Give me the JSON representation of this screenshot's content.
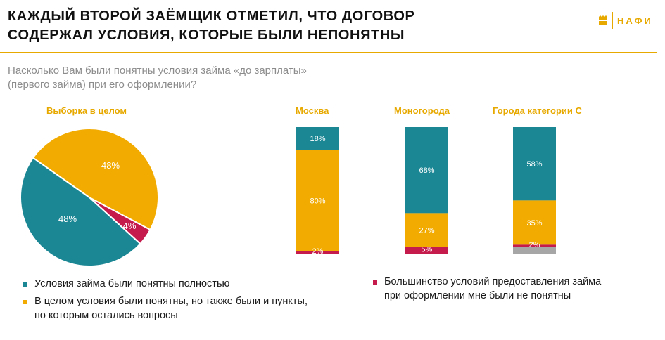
{
  "header": {
    "title_line1": "КАЖДЫЙ ВТОРОЙ ЗАЁМЩИК ОТМЕТИЛ, ЧТО ДОГОВОР",
    "title_line2": "СОДЕРЖАЛ УСЛОВИЯ, КОТОРЫЕ БЫЛИ НЕПОНЯТНЫ",
    "logo_text": "НАФИ"
  },
  "question": {
    "line1": "Насколько Вам были понятны условия займа «до зарплаты»",
    "line2": "(первого займа) при его оформлении?"
  },
  "colors": {
    "teal": "#1b8795",
    "yellow": "#f2ab00",
    "crimson": "#c41a4c",
    "gray": "#a6a6a6",
    "accent": "#e7a900"
  },
  "chart_data": [
    {
      "type": "pie",
      "title": "Выборка в целом",
      "slices": [
        {
          "key": "full",
          "value": 48,
          "label": "48%"
        },
        {
          "key": "partial",
          "value": 48,
          "label": "48%"
        },
        {
          "key": "none",
          "value": 4,
          "label": "4%"
        }
      ]
    },
    {
      "type": "bar",
      "stacked": true,
      "ylim": [
        0,
        100
      ],
      "categories": [
        "Москва",
        "Моногорода",
        "Города категории С"
      ],
      "series": [
        {
          "key": "full",
          "values": [
            18,
            68,
            58
          ],
          "labels": [
            "18%",
            "68%",
            "58%"
          ]
        },
        {
          "key": "partial",
          "values": [
            80,
            27,
            35
          ],
          "labels": [
            "80%",
            "27%",
            "35%"
          ]
        },
        {
          "key": "none",
          "values": [
            2,
            5,
            2
          ],
          "labels": [
            "2%",
            "5%",
            "2%"
          ]
        },
        {
          "key": "other",
          "values": [
            0,
            0,
            5
          ],
          "labels": [
            "",
            "",
            ""
          ]
        }
      ]
    }
  ],
  "legend": {
    "full": "Условия займа были понятны полностью",
    "partial_line1": "В целом условия были понятны, но также были и пункты,",
    "partial_line2": "по которым остались вопросы",
    "none_line1": "Большинство условий предоставления займа",
    "none_line2": "при оформлении мне были не понятны"
  }
}
